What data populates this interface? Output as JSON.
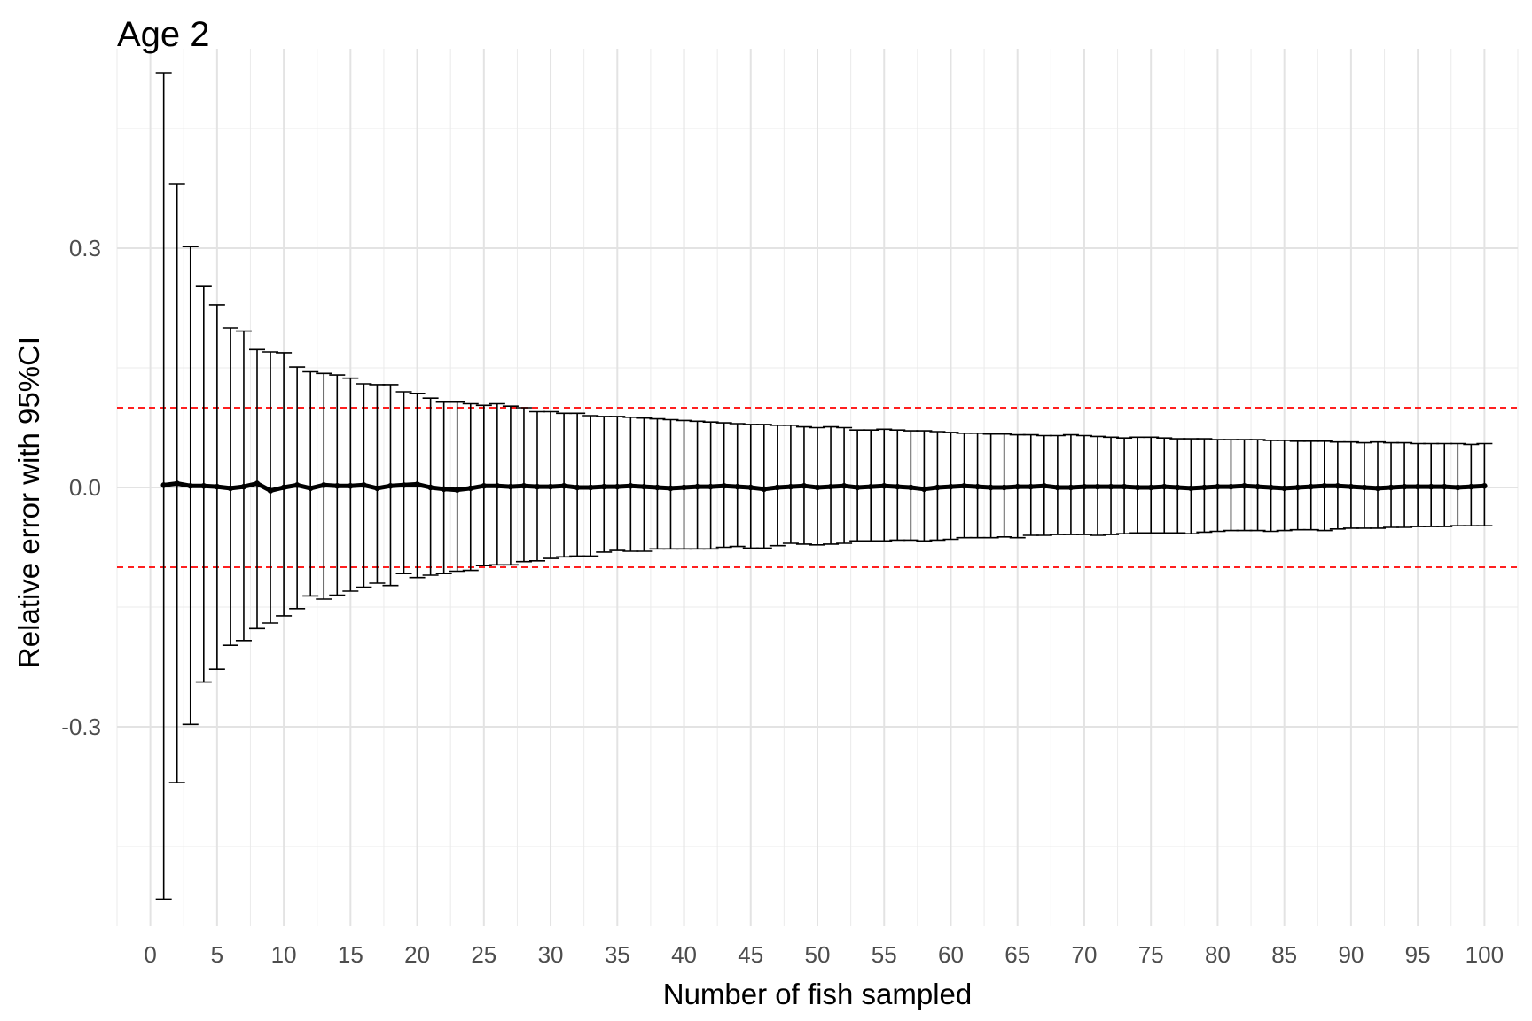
{
  "chart_data": {
    "type": "scatter",
    "title": "Age 2",
    "xlabel": "Number of fish sampled",
    "ylabel": "Relative error with 95%CI",
    "xlim": [
      -2.5,
      102.5
    ],
    "ylim": [
      -0.55,
      0.55
    ],
    "x_ticks": [
      0,
      5,
      10,
      15,
      20,
      25,
      30,
      35,
      40,
      45,
      50,
      55,
      60,
      65,
      70,
      75,
      80,
      85,
      90,
      95,
      100
    ],
    "x_tick_labels": [
      "0",
      "5",
      "10",
      "15",
      "20",
      "25",
      "30",
      "35",
      "40",
      "45",
      "50",
      "55",
      "60",
      "65",
      "70",
      "75",
      "80",
      "85",
      "90",
      "95",
      "100"
    ],
    "y_ticks": [
      -0.3,
      0.0,
      0.3
    ],
    "y_tick_labels": [
      "-0.3",
      "0.0",
      "0.3"
    ],
    "y_minor_gridlines": [
      -0.45,
      -0.15,
      0.15,
      0.45
    ],
    "grid": true,
    "reference_lines": [
      {
        "y": 0.1,
        "color": "#ff0000",
        "style": "dashed"
      },
      {
        "y": -0.1,
        "color": "#ff0000",
        "style": "dashed"
      }
    ],
    "series": [
      {
        "x": [
          1,
          2,
          3,
          4,
          5,
          6,
          7,
          8,
          9,
          10,
          11,
          12,
          13,
          14,
          15,
          16,
          17,
          18,
          19,
          20,
          21,
          22,
          23,
          24,
          25,
          26,
          27,
          28,
          29,
          30,
          31,
          32,
          33,
          34,
          35,
          36,
          37,
          38,
          39,
          40,
          41,
          42,
          43,
          44,
          45,
          46,
          47,
          48,
          49,
          50,
          51,
          52,
          53,
          54,
          55,
          56,
          57,
          58,
          59,
          60,
          61,
          62,
          63,
          64,
          65,
          66,
          67,
          68,
          69,
          70,
          71,
          72,
          73,
          74,
          75,
          76,
          77,
          78,
          79,
          80,
          81,
          82,
          83,
          84,
          85,
          86,
          87,
          88,
          89,
          90,
          91,
          92,
          93,
          94,
          95,
          96,
          97,
          98,
          99,
          100
        ],
        "y": [
          0.003,
          0.005,
          0.002,
          0.002,
          0.001,
          -0.001,
          0.001,
          0.005,
          -0.004,
          0.0,
          0.003,
          -0.001,
          0.003,
          0.002,
          0.002,
          0.003,
          -0.001,
          0.002,
          0.003,
          0.004,
          0.0,
          -0.002,
          -0.003,
          -0.001,
          0.002,
          0.002,
          0.001,
          0.002,
          0.001,
          0.001,
          0.002,
          0.0,
          0.0,
          0.001,
          0.001,
          0.002,
          0.001,
          0.0,
          -0.001,
          0.0,
          0.001,
          0.001,
          0.002,
          0.001,
          0.0,
          -0.002,
          0.0,
          0.001,
          0.002,
          0.0,
          0.001,
          0.002,
          0.0,
          0.001,
          0.002,
          0.001,
          0.0,
          -0.002,
          0.0,
          0.001,
          0.002,
          0.001,
          0.0,
          0.0,
          0.001,
          0.001,
          0.002,
          0.0,
          0.0,
          0.001,
          0.001,
          0.001,
          0.001,
          0.0,
          0.0,
          0.001,
          0.0,
          -0.001,
          0.0,
          0.001,
          0.001,
          0.002,
          0.001,
          0.0,
          -0.001,
          0.0,
          0.001,
          0.002,
          0.002,
          0.001,
          0.0,
          -0.001,
          0.0,
          0.001,
          0.001,
          0.001,
          0.001,
          0.0,
          0.001,
          0.002
        ],
        "lower": [
          -0.516,
          -0.37,
          -0.297,
          -0.244,
          -0.228,
          -0.198,
          -0.192,
          -0.177,
          -0.17,
          -0.161,
          -0.152,
          -0.136,
          -0.14,
          -0.135,
          -0.13,
          -0.125,
          -0.12,
          -0.123,
          -0.108,
          -0.113,
          -0.11,
          -0.108,
          -0.105,
          -0.104,
          -0.098,
          -0.097,
          -0.097,
          -0.093,
          -0.092,
          -0.089,
          -0.087,
          -0.086,
          -0.086,
          -0.081,
          -0.079,
          -0.08,
          -0.08,
          -0.077,
          -0.077,
          -0.077,
          -0.077,
          -0.077,
          -0.075,
          -0.074,
          -0.076,
          -0.076,
          -0.073,
          -0.07,
          -0.071,
          -0.072,
          -0.071,
          -0.07,
          -0.067,
          -0.067,
          -0.067,
          -0.066,
          -0.066,
          -0.067,
          -0.066,
          -0.065,
          -0.063,
          -0.063,
          -0.063,
          -0.062,
          -0.063,
          -0.06,
          -0.06,
          -0.059,
          -0.059,
          -0.059,
          -0.06,
          -0.059,
          -0.058,
          -0.057,
          -0.057,
          -0.057,
          -0.057,
          -0.058,
          -0.056,
          -0.055,
          -0.054,
          -0.054,
          -0.054,
          -0.055,
          -0.054,
          -0.053,
          -0.053,
          -0.054,
          -0.052,
          -0.051,
          -0.051,
          -0.051,
          -0.05,
          -0.05,
          -0.049,
          -0.049,
          -0.049,
          -0.048,
          -0.048,
          -0.048
        ],
        "upper": [
          0.52,
          0.38,
          0.302,
          0.252,
          0.229,
          0.2,
          0.196,
          0.173,
          0.17,
          0.169,
          0.151,
          0.145,
          0.143,
          0.141,
          0.137,
          0.13,
          0.129,
          0.129,
          0.12,
          0.118,
          0.112,
          0.107,
          0.107,
          0.105,
          0.103,
          0.105,
          0.102,
          0.1,
          0.095,
          0.095,
          0.093,
          0.093,
          0.09,
          0.089,
          0.089,
          0.088,
          0.087,
          0.086,
          0.085,
          0.084,
          0.083,
          0.082,
          0.081,
          0.08,
          0.079,
          0.079,
          0.078,
          0.078,
          0.076,
          0.075,
          0.076,
          0.075,
          0.072,
          0.072,
          0.073,
          0.072,
          0.071,
          0.071,
          0.07,
          0.069,
          0.068,
          0.068,
          0.067,
          0.067,
          0.066,
          0.066,
          0.065,
          0.065,
          0.066,
          0.065,
          0.064,
          0.063,
          0.062,
          0.063,
          0.063,
          0.062,
          0.061,
          0.061,
          0.061,
          0.06,
          0.06,
          0.06,
          0.06,
          0.059,
          0.059,
          0.058,
          0.058,
          0.058,
          0.057,
          0.057,
          0.056,
          0.057,
          0.056,
          0.056,
          0.055,
          0.055,
          0.055,
          0.055,
          0.054,
          0.055
        ]
      }
    ]
  }
}
